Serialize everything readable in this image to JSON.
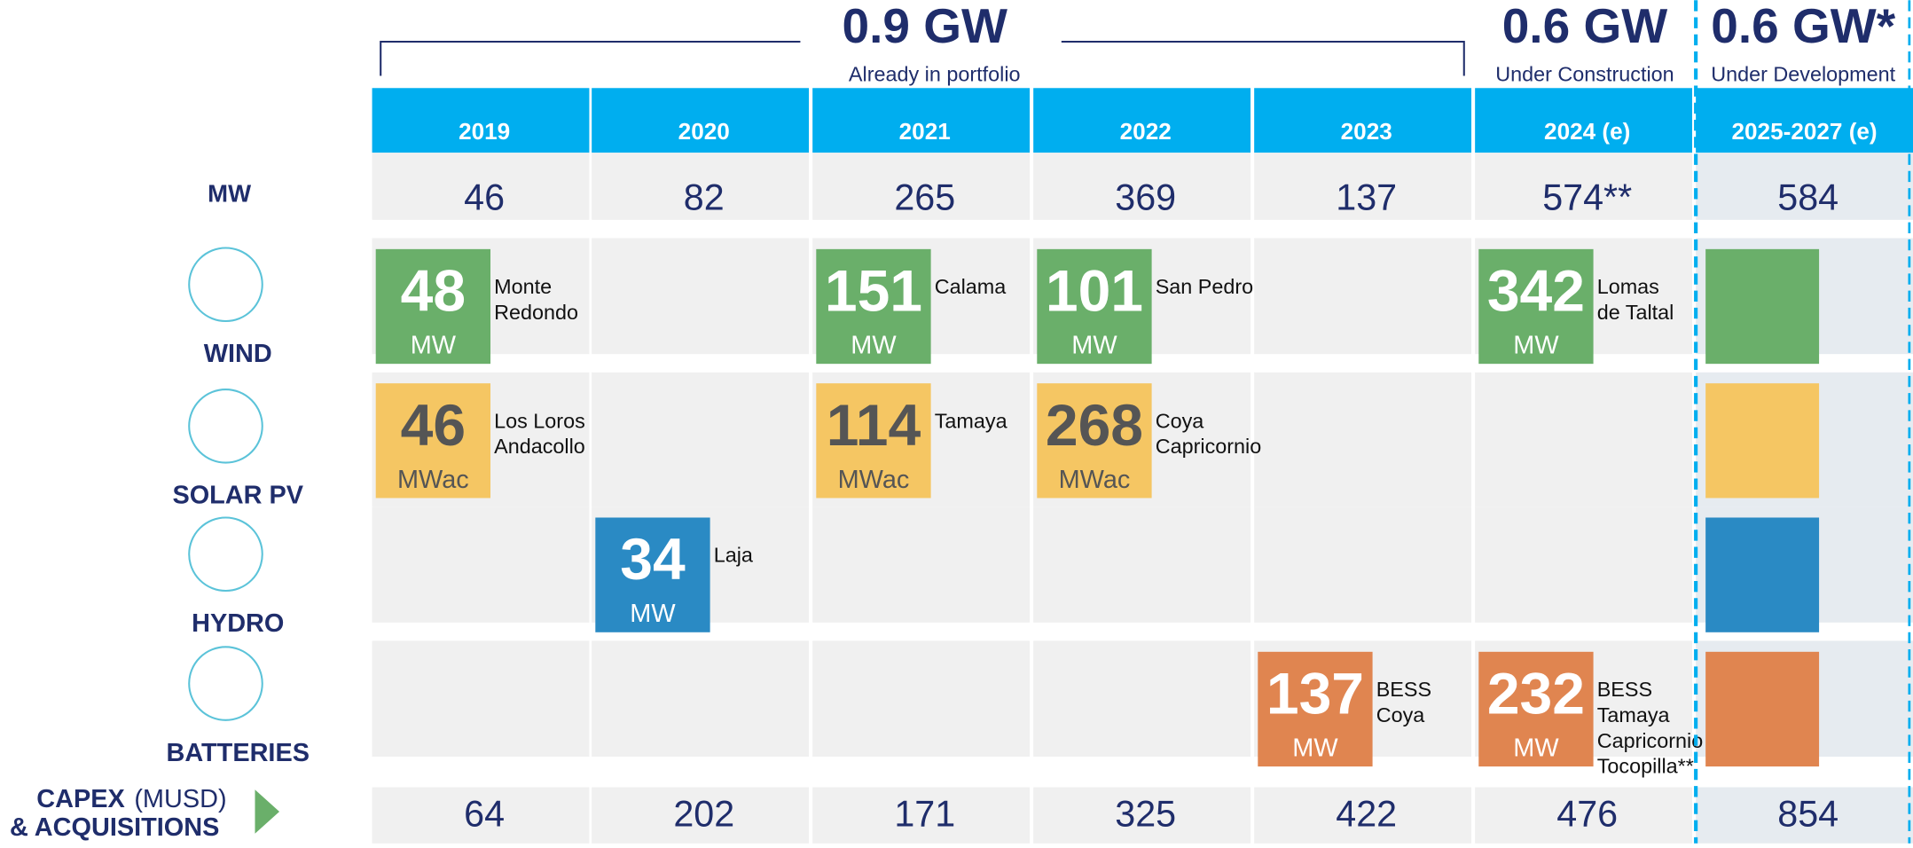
{
  "header": {
    "groups": [
      {
        "value": "0.9 GW",
        "label": "Already in portfolio"
      },
      {
        "value": "0.6 GW",
        "label": "Under Construction"
      },
      {
        "value": "0.6 GW*",
        "label": "Under Development"
      }
    ]
  },
  "columns": [
    "2019",
    "2020",
    "2021",
    "2022",
    "2023",
    "2024 (e)",
    "2025-2027 (e)"
  ],
  "mw_row": {
    "label": "MW",
    "values": [
      46,
      82,
      265,
      369,
      137,
      "574**",
      584
    ]
  },
  "rows": [
    {
      "label": "WIND",
      "cells": [
        {
          "value": 48,
          "unit": "MW",
          "name": [
            "Monte",
            "Redondo"
          ]
        },
        null,
        {
          "value": 151,
          "unit": "MW",
          "name": [
            "Calama"
          ]
        },
        {
          "value": 101,
          "unit": "MW",
          "name": [
            "San Pedro"
          ]
        },
        null,
        {
          "value": 342,
          "unit": "MW",
          "name": [
            "Lomas",
            "de Taltal"
          ]
        }
      ]
    },
    {
      "label": "SOLAR PV",
      "cells": [
        {
          "value": 46,
          "unit": "MWac",
          "name": [
            "Los Loros",
            "Andacollo"
          ]
        },
        null,
        {
          "value": 114,
          "unit": "MWac",
          "name": [
            "Tamaya"
          ]
        },
        {
          "value": 268,
          "unit": "MWac",
          "name": [
            "Coya",
            "Capricornio"
          ]
        },
        null,
        null
      ]
    },
    {
      "label": "HYDRO",
      "cells": [
        null,
        {
          "value": 34,
          "unit": "MW",
          "name": [
            "Laja"
          ]
        },
        null,
        null,
        null,
        null
      ]
    },
    {
      "label": "BATTERIES",
      "cells": [
        null,
        null,
        null,
        null,
        {
          "value": 137,
          "unit": "MW",
          "name": [
            "BESS",
            "Coya"
          ]
        },
        {
          "value": 232,
          "unit": "MW",
          "name": [
            "BESS",
            "Tamaya",
            "Capricornio",
            "Tocopilla**"
          ]
        }
      ]
    }
  ],
  "capex_row": {
    "label": [
      "CAPEX",
      "(MUSD)",
      "& ACQUISITIONS"
    ],
    "values": [
      64,
      202,
      171,
      325,
      422,
      476,
      854
    ]
  }
}
